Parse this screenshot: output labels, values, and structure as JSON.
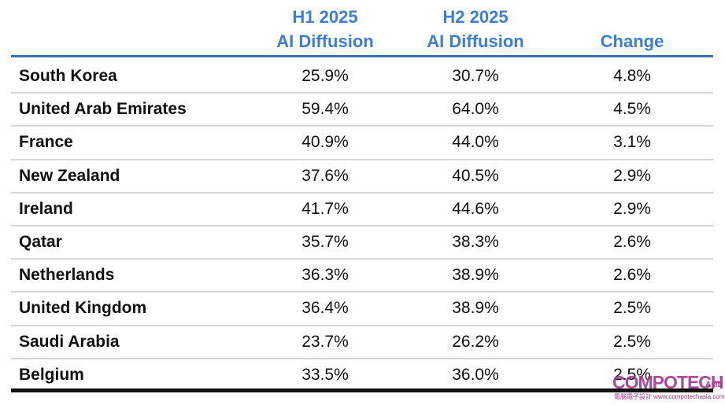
{
  "table": {
    "headers": [
      [
        "H1 2025",
        "AI Diffusion"
      ],
      [
        "H2 2025",
        "AI Diffusion"
      ],
      [
        "Change"
      ]
    ],
    "rows": [
      [
        "South Korea",
        "25.9%",
        "30.7%",
        "4.8%"
      ],
      [
        "United Arab Emirates",
        "59.4%",
        "64.0%",
        "4.5%"
      ],
      [
        "France",
        "40.9%",
        "44.0%",
        "3.1%"
      ],
      [
        "New Zealand",
        "37.6%",
        "40.5%",
        "2.9%"
      ],
      [
        "Ireland",
        "41.7%",
        "44.6%",
        "2.9%"
      ],
      [
        "Qatar",
        "35.7%",
        "38.3%",
        "2.6%"
      ],
      [
        "Netherlands",
        "36.3%",
        "38.9%",
        "2.6%"
      ],
      [
        "United Kingdom",
        "36.4%",
        "38.9%",
        "2.5%"
      ],
      [
        "Saudi Arabia",
        "23.7%",
        "26.2%",
        "2.5%"
      ],
      [
        "Belgium",
        "33.5%",
        "36.0%",
        "2.5%"
      ]
    ]
  },
  "watermark": {
    "brand": "COMPOTECH",
    "region": "Asia",
    "subtitle": "電腦電子設計 www.compotechasia.com"
  }
}
